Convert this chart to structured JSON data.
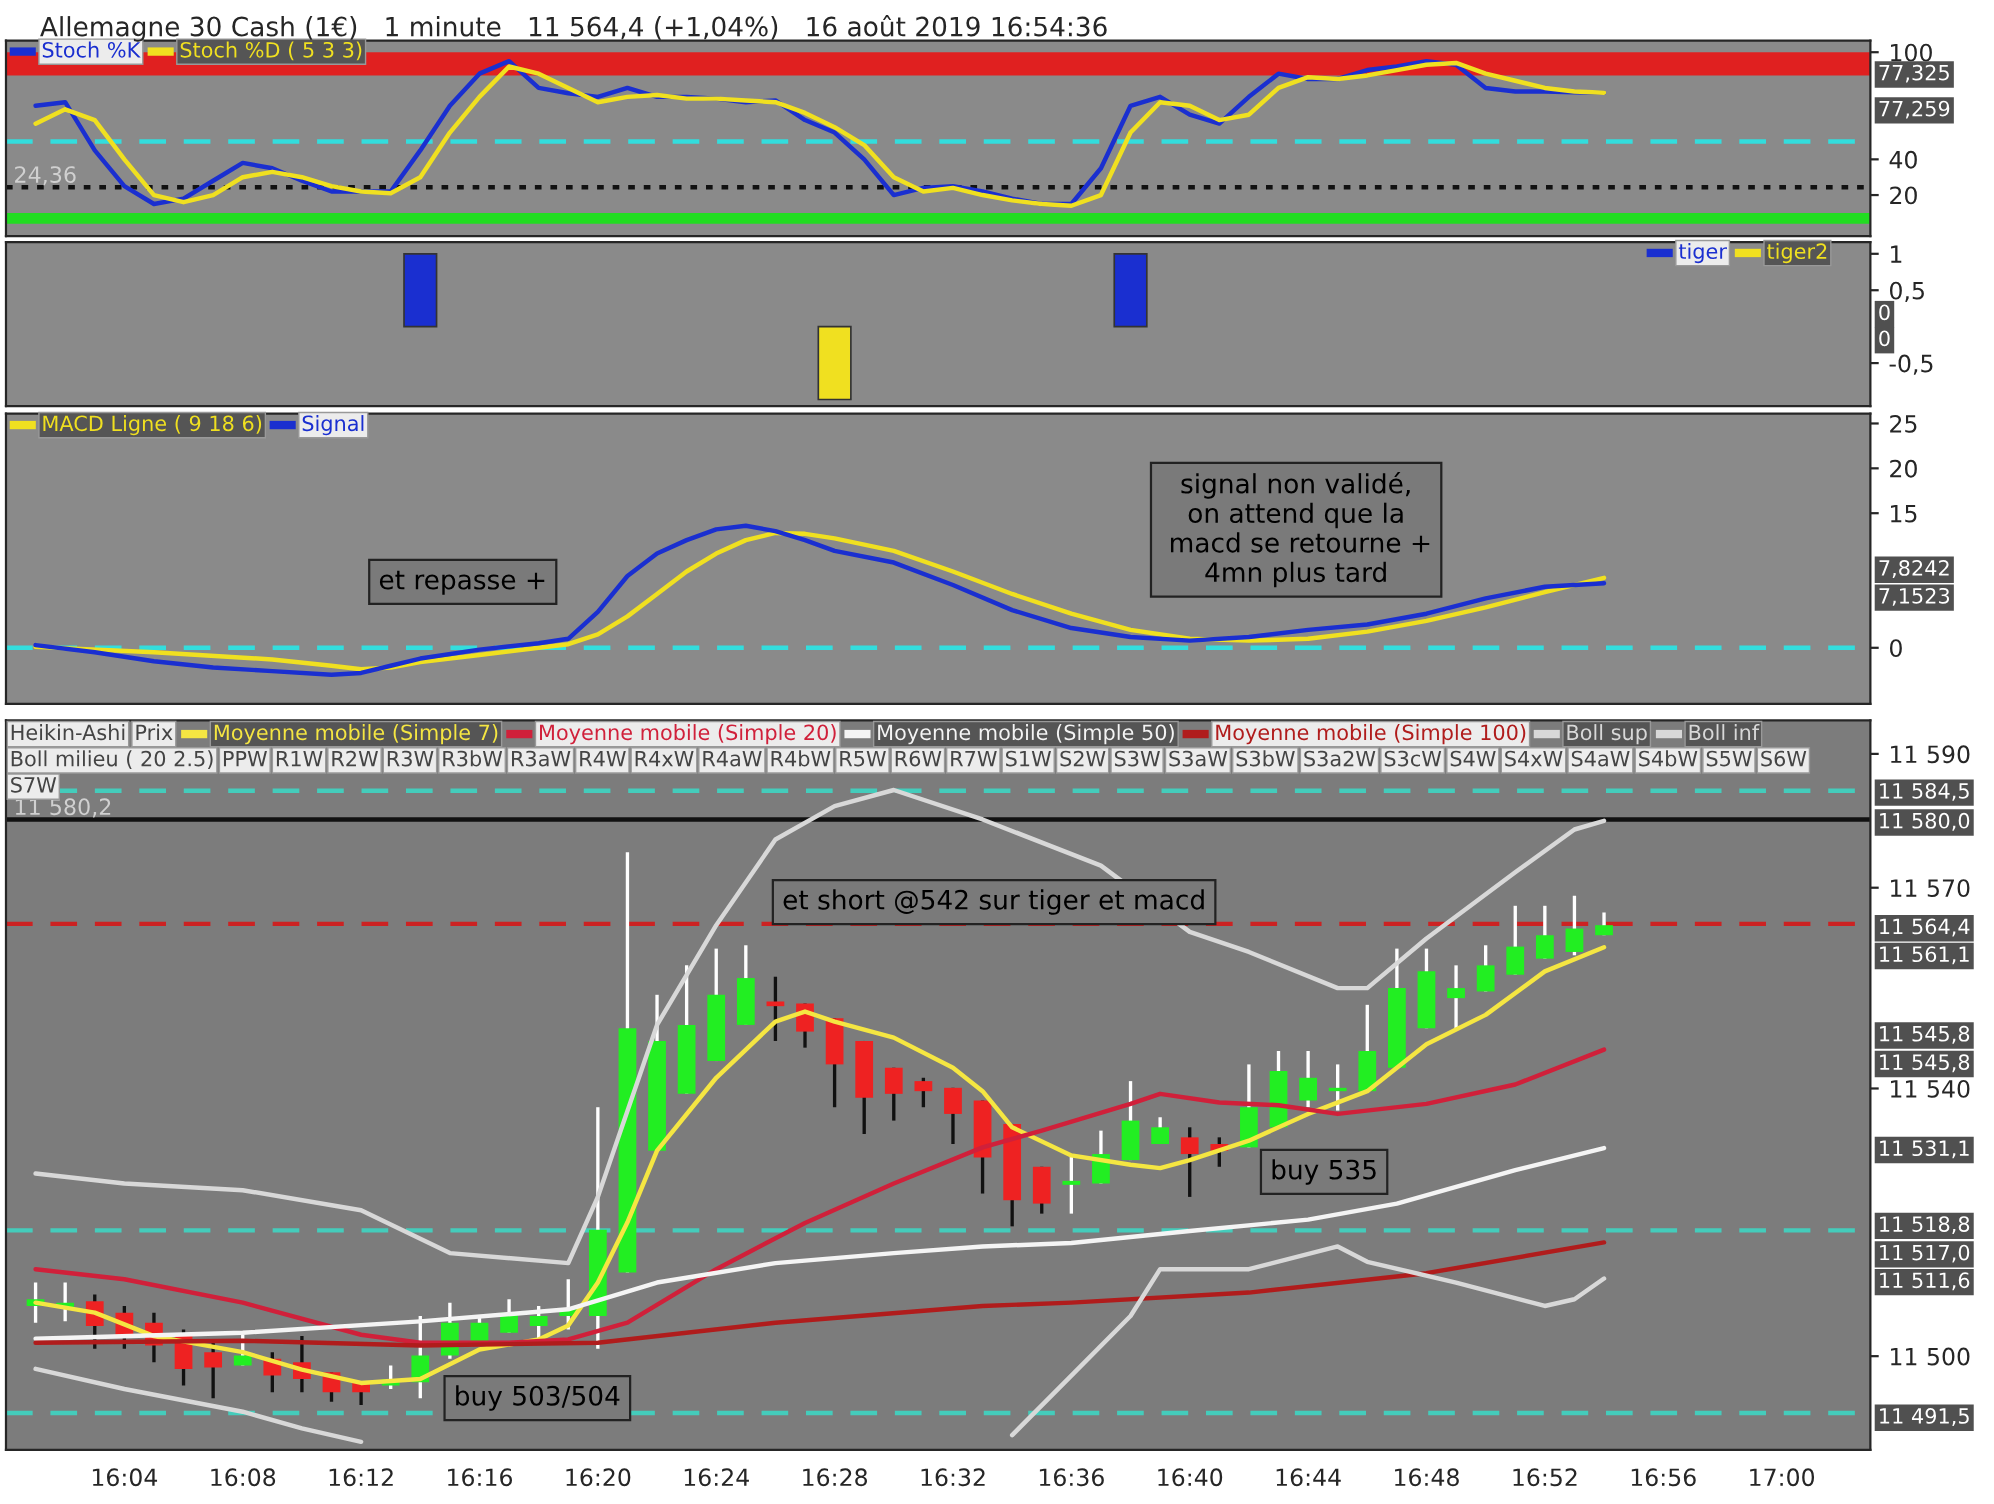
{
  "chart_data": [
    {
      "type": "line",
      "title": "Allemagne 30 Cash (1€)   1 minute   11 564,4 (+1,04%)   16 août 2019 16:54:36",
      "tick_labels": "y",
      "xlim": [
        "2019-08-16T16:00",
        "2019-08-16T17:03"
      ],
      "ylim": [
        -3,
        106.5
      ],
      "yticks": [
        20,
        40,
        100
      ],
      "x": [
        "2019-08-16T16:01",
        "2019-08-16T16:02",
        "2019-08-16T16:03",
        "2019-08-16T16:04",
        "2019-08-16T16:05",
        "2019-08-16T16:06",
        "2019-08-16T16:07",
        "2019-08-16T16:08",
        "2019-08-16T16:09",
        "2019-08-16T16:10",
        "2019-08-16T16:11",
        "2019-08-16T16:12",
        "2019-08-16T16:13",
        "2019-08-16T16:14",
        "2019-08-16T16:15",
        "2019-08-16T16:16",
        "2019-08-16T16:17",
        "2019-08-16T16:18",
        "2019-08-16T16:19",
        "2019-08-16T16:20",
        "2019-08-16T16:21",
        "2019-08-16T16:22",
        "2019-08-16T16:23",
        "2019-08-16T16:24",
        "2019-08-16T16:25",
        "2019-08-16T16:26",
        "2019-08-16T16:27",
        "2019-08-16T16:28",
        "2019-08-16T16:29",
        "2019-08-16T16:30",
        "2019-08-16T16:31",
        "2019-08-16T16:32",
        "2019-08-16T16:33",
        "2019-08-16T16:34",
        "2019-08-16T16:35",
        "2019-08-16T16:36",
        "2019-08-16T16:37",
        "2019-08-16T16:38",
        "2019-08-16T16:39",
        "2019-08-16T16:40",
        "2019-08-16T16:41",
        "2019-08-16T16:42",
        "2019-08-16T16:43",
        "2019-08-16T16:44",
        "2019-08-16T16:45",
        "2019-08-16T16:46",
        "2019-08-16T16:47",
        "2019-08-16T16:48",
        "2019-08-16T16:49",
        "2019-08-16T16:50",
        "2019-08-16T16:51",
        "2019-08-16T16:52",
        "2019-08-16T16:53",
        "2019-08-16T16:54"
      ],
      "series": [
        {
          "name": "Stoch %K",
          "color": "#1a2fd0",
          "values": [
            70,
            72,
            45,
            25,
            15,
            18,
            28,
            38,
            35,
            28,
            22,
            22,
            22,
            45,
            70,
            88,
            95,
            80,
            77,
            75,
            80,
            75,
            75,
            74,
            72,
            73,
            62,
            55,
            40,
            20,
            24,
            25,
            22,
            18,
            15,
            15,
            35,
            70,
            75,
            65,
            60,
            75,
            88,
            85,
            85,
            90,
            92,
            95,
            93,
            80,
            78,
            78,
            77.5,
            77.3
          ]
        },
        {
          "name": "Stoch %D ( 5 3 3)",
          "color": "#f0e020",
          "values": [
            60,
            68,
            62,
            40,
            20,
            16,
            20,
            30,
            33,
            30,
            25,
            22,
            21,
            30,
            55,
            75,
            92,
            88,
            80,
            72,
            75,
            76,
            74,
            74,
            73,
            72,
            66,
            58,
            48,
            30,
            22,
            24,
            20,
            17,
            15,
            14,
            20,
            55,
            72,
            70,
            62,
            65,
            80,
            86,
            85,
            87,
            90,
            93,
            94,
            88,
            84,
            80,
            78,
            77.3
          ]
        }
      ],
      "bands": [
        {
          "axis": "y",
          "from": 87,
          "to": 100,
          "color": "#e02020"
        },
        {
          "axis": "y",
          "from": 4,
          "to": 10,
          "color": "#22dd22"
        }
      ],
      "ref_lines": [
        {
          "axis": "y",
          "value": 50,
          "color": "#33dddd",
          "line_style": "dashed"
        },
        {
          "axis": "y",
          "value": 24.36,
          "label": "24,36",
          "color": "#111111",
          "line_style": "dotted"
        }
      ],
      "legend": "top left",
      "annotations": [
        "77,325",
        "77,259"
      ]
    },
    {
      "type": "bar",
      "tick_labels": "y",
      "xlim": [
        "2019-08-16T16:00",
        "2019-08-16T17:03"
      ],
      "ylim": [
        -1.09,
        1.16
      ],
      "yticks": [
        1,
        {
          "value": 0.5,
          "label": "0,5"
        },
        {
          "value": -0.5,
          "label": "-0,5"
        }
      ],
      "series": [
        {
          "name": "tiger",
          "color": "#1a2fd0",
          "x": [
            "2019-08-16T16:14",
            "2019-08-16T16:38"
          ],
          "values": [
            1,
            1
          ]
        },
        {
          "name": "tiger2",
          "color": "#f0e020",
          "x": [
            "2019-08-16T16:28"
          ],
          "values": [
            -1
          ]
        }
      ],
      "legend": "top right",
      "annotations": [
        "0",
        "0"
      ]
    },
    {
      "type": "line",
      "tick_labels": "y",
      "xlim": [
        "2019-08-16T16:00",
        "2019-08-16T17:03"
      ],
      "ylim": [
        -6.25,
        26.1
      ],
      "yticks": [
        0,
        15,
        20,
        25
      ],
      "series": [
        {
          "name": "MACD Ligne ( 9 18 6)",
          "color": "#f0e020",
          "x": [
            "2019-08-16T16:01",
            "2019-08-16T16:05",
            "2019-08-16T16:09",
            "2019-08-16T16:11",
            "2019-08-16T16:12",
            "2019-08-16T16:13",
            "2019-08-16T16:14",
            "2019-08-16T16:16",
            "2019-08-16T16:18",
            "2019-08-16T16:19",
            "2019-08-16T16:20",
            "2019-08-16T16:21",
            "2019-08-16T16:22",
            "2019-08-16T16:23",
            "2019-08-16T16:24",
            "2019-08-16T16:25",
            "2019-08-16T16:26",
            "2019-08-16T16:27",
            "2019-08-16T16:28",
            "2019-08-16T16:30",
            "2019-08-16T16:32",
            "2019-08-16T16:34",
            "2019-08-16T16:36",
            "2019-08-16T16:38",
            "2019-08-16T16:40",
            "2019-08-16T16:42",
            "2019-08-16T16:44",
            "2019-08-16T16:46",
            "2019-08-16T16:48",
            "2019-08-16T16:50",
            "2019-08-16T16:52",
            "2019-08-16T16:54"
          ],
          "values": [
            0.1,
            -0.5,
            -1.3,
            -2.0,
            -2.4,
            -2.2,
            -1.6,
            -0.8,
            0,
            0.4,
            1.5,
            3.5,
            6,
            8.5,
            10.5,
            12.0,
            12.8,
            12.7,
            12.2,
            10.8,
            8.5,
            6.0,
            3.8,
            2.0,
            1.0,
            0.8,
            1.0,
            1.8,
            3.0,
            4.5,
            6.2,
            7.8
          ]
        },
        {
          "name": "Signal",
          "color": "#1a2fd0",
          "x": [
            "2019-08-16T16:01",
            "2019-08-16T16:03",
            "2019-08-16T16:05",
            "2019-08-16T16:07",
            "2019-08-16T16:09",
            "2019-08-16T16:11",
            "2019-08-16T16:12",
            "2019-08-16T16:13",
            "2019-08-16T16:14",
            "2019-08-16T16:16",
            "2019-08-16T16:18",
            "2019-08-16T16:19",
            "2019-08-16T16:20",
            "2019-08-16T16:21",
            "2019-08-16T16:22",
            "2019-08-16T16:23",
            "2019-08-16T16:24",
            "2019-08-16T16:25",
            "2019-08-16T16:26",
            "2019-08-16T16:27",
            "2019-08-16T16:28",
            "2019-08-16T16:30",
            "2019-08-16T16:32",
            "2019-08-16T16:34",
            "2019-08-16T16:36",
            "2019-08-16T16:38",
            "2019-08-16T16:40",
            "2019-08-16T16:42",
            "2019-08-16T16:44",
            "2019-08-16T16:46",
            "2019-08-16T16:48",
            "2019-08-16T16:50",
            "2019-08-16T16:52",
            "2019-08-16T16:54"
          ],
          "values": [
            0.3,
            -0.5,
            -1.5,
            -2.2,
            -2.6,
            -3.0,
            -2.8,
            -2.0,
            -1.2,
            -0.2,
            0.5,
            1.0,
            4,
            8,
            10.5,
            12.0,
            13.2,
            13.6,
            13.0,
            12.0,
            10.8,
            9.5,
            7.0,
            4.2,
            2.2,
            1.2,
            0.8,
            1.2,
            2.0,
            2.6,
            3.8,
            5.5,
            6.8,
            7.2
          ]
        }
      ],
      "ref_lines": [
        {
          "axis": "y",
          "value": 0,
          "color": "#33dddd",
          "line_style": "dashed"
        }
      ],
      "legend": "top left",
      "annotations": [
        "et repasse +",
        "signal non validé,\non attend que la\n macd se retourne +\n4mn plus tard",
        "7,8242",
        "7,1523"
      ]
    },
    {
      "type": "candlestick",
      "xlim": [
        "2019-08-16T16:00",
        "2019-08-16T17:03"
      ],
      "ylim": [
        11486,
        11595
      ],
      "yticks": [
        {
          "value": 11590,
          "label": "11 590"
        },
        {
          "value": 11570,
          "label": "11 570"
        },
        {
          "value": 11540,
          "label": "11 540"
        },
        {
          "value": 11500,
          "label": "11 500"
        }
      ],
      "xticks": [
        {
          "value": "2019-08-16T16:04",
          "label": "16:04"
        },
        {
          "value": "2019-08-16T16:08",
          "label": "16:08"
        },
        {
          "value": "2019-08-16T16:12",
          "label": "16:12"
        },
        {
          "value": "2019-08-16T16:16",
          "label": "16:16"
        },
        {
          "value": "2019-08-16T16:20",
          "label": "16:20"
        },
        {
          "value": "2019-08-16T16:24",
          "label": "16:24"
        },
        {
          "value": "2019-08-16T16:28",
          "label": "16:28"
        },
        {
          "value": "2019-08-16T16:32",
          "label": "16:32"
        },
        {
          "value": "2019-08-16T16:36",
          "label": "16:36"
        },
        {
          "value": "2019-08-16T16:40",
          "label": "16:40"
        },
        {
          "value": "2019-08-16T16:44",
          "label": "16:44"
        },
        {
          "value": "2019-08-16T16:48",
          "label": "16:48"
        },
        {
          "value": "2019-08-16T16:52",
          "label": "16:52"
        },
        {
          "value": "2019-08-16T16:56",
          "label": "16:56"
        },
        {
          "value": "2019-08-16T17:00",
          "label": "17:00"
        }
      ],
      "x": [
        "2019-08-16T16:01",
        "2019-08-16T16:02",
        "2019-08-16T16:03",
        "2019-08-16T16:04",
        "2019-08-16T16:05",
        "2019-08-16T16:06",
        "2019-08-16T16:07",
        "2019-08-16T16:08",
        "2019-08-16T16:09",
        "2019-08-16T16:10",
        "2019-08-16T16:11",
        "2019-08-16T16:12",
        "2019-08-16T16:13",
        "2019-08-16T16:14",
        "2019-08-16T16:15",
        "2019-08-16T16:16",
        "2019-08-16T16:17",
        "2019-08-16T16:18",
        "2019-08-16T16:19",
        "2019-08-16T16:20",
        "2019-08-16T16:21",
        "2019-08-16T16:22",
        "2019-08-16T16:23",
        "2019-08-16T16:24",
        "2019-08-16T16:25",
        "2019-08-16T16:26",
        "2019-08-16T16:27",
        "2019-08-16T16:28",
        "2019-08-16T16:29",
        "2019-08-16T16:30",
        "2019-08-16T16:31",
        "2019-08-16T16:32",
        "2019-08-16T16:33",
        "2019-08-16T16:34",
        "2019-08-16T16:35",
        "2019-08-16T16:36",
        "2019-08-16T16:37",
        "2019-08-16T16:38",
        "2019-08-16T16:39",
        "2019-08-16T16:40",
        "2019-08-16T16:41",
        "2019-08-16T16:42",
        "2019-08-16T16:43",
        "2019-08-16T16:44",
        "2019-08-16T16:45",
        "2019-08-16T16:46",
        "2019-08-16T16:47",
        "2019-08-16T16:48",
        "2019-08-16T16:49",
        "2019-08-16T16:50",
        "2019-08-16T16:51",
        "2019-08-16T16:52",
        "2019-08-16T16:53",
        "2019-08-16T16:54"
      ],
      "ohlc": [
        [
          11507.5,
          11511,
          11505,
          11508.5
        ],
        [
          11507.2,
          11511,
          11505.2,
          11508
        ],
        [
          11508.2,
          11509.2,
          11501.1,
          11504.5
        ],
        [
          11506.5,
          11507.5,
          11501.1,
          11503
        ],
        [
          11505,
          11506.5,
          11499.1,
          11501.6
        ],
        [
          11503,
          11504,
          11495.6,
          11498.1
        ],
        [
          11500.6,
          11502,
          11493.7,
          11498.3
        ],
        [
          11498.6,
          11503.2,
          11498.6,
          11500.1
        ],
        [
          11499.6,
          11500.6,
          11494.6,
          11497.1
        ],
        [
          11499.1,
          11503,
          11494.6,
          11496.6
        ],
        [
          11497.6,
          11497.6,
          11493.2,
          11494.6
        ],
        [
          11496.3,
          11496.3,
          11492.7,
          11494.6
        ],
        [
          11495.6,
          11498.6,
          11495.1,
          11496.6
        ],
        [
          11496.1,
          11506,
          11493.7,
          11500.1
        ],
        [
          11500.1,
          11508,
          11499.6,
          11505
        ],
        [
          11502,
          11506,
          11502,
          11505
        ],
        [
          11503.5,
          11508.5,
          11503.5,
          11506.5
        ],
        [
          11504.5,
          11507.5,
          11502,
          11506
        ],
        [
          11506,
          11511.5,
          11504,
          11507
        ],
        [
          11506,
          11537.2,
          11501.1,
          11518.9
        ],
        [
          11512.5,
          11575.3,
          11512.5,
          11549
        ],
        [
          11530.7,
          11554,
          11530.7,
          11547.1
        ],
        [
          11539.2,
          11558.4,
          11539.2,
          11549.5
        ],
        [
          11544.1,
          11560.9,
          11544.1,
          11554
        ],
        [
          11549.5,
          11561.4,
          11549.5,
          11556.5
        ],
        [
          11553,
          11556.7,
          11547.1,
          11552.3
        ],
        [
          11552.7,
          11552.7,
          11546.1,
          11548.5
        ],
        [
          11550.5,
          11550.5,
          11537.2,
          11543.6
        ],
        [
          11547.1,
          11547.1,
          11533.2,
          11538.6
        ],
        [
          11543.1,
          11543.1,
          11535.2,
          11539.2
        ],
        [
          11541.1,
          11541.6,
          11537.2,
          11539.6
        ],
        [
          11540.1,
          11540.1,
          11531.7,
          11536.2
        ],
        [
          11538.2,
          11538.2,
          11524.3,
          11529.7
        ],
        [
          11534.7,
          11534.7,
          11519.4,
          11523.3
        ],
        [
          11528.3,
          11528.3,
          11521.3,
          11522.8
        ],
        [
          11525.6,
          11530.2,
          11521.3,
          11526.2
        ],
        [
          11525.8,
          11533.7,
          11525.8,
          11530.2
        ],
        [
          11529.3,
          11541.1,
          11529.3,
          11535.2
        ],
        [
          11531.7,
          11535.7,
          11531.7,
          11534.2
        ],
        [
          11532.7,
          11534.2,
          11523.8,
          11530.2
        ],
        [
          11531.7,
          11532.7,
          11528.3,
          11530.7
        ],
        [
          11531.2,
          11543.6,
          11531.2,
          11537.2
        ],
        [
          11534.2,
          11545.6,
          11534.2,
          11542.6
        ],
        [
          11538.2,
          11545.6,
          11537.2,
          11541.6
        ],
        [
          11539.6,
          11543.6,
          11536.7,
          11540.1
        ],
        [
          11539.6,
          11552.5,
          11539.6,
          11545.6
        ],
        [
          11543.1,
          11560.9,
          11543.1,
          11555
        ],
        [
          11549,
          11560.9,
          11549,
          11557.5
        ],
        [
          11553.5,
          11558.4,
          11549,
          11555
        ],
        [
          11554.5,
          11561.4,
          11554.5,
          11558.4
        ],
        [
          11557,
          11567.3,
          11557,
          11561.2
        ],
        [
          11559.4,
          11567.3,
          11559.4,
          11562.9
        ],
        [
          11560.4,
          11568.8,
          11559.9,
          11563.9
        ],
        [
          11562.9,
          11566.3,
          11562.9,
          11564.4
        ]
      ],
      "colors": [
        "#22ee22",
        "#22ee22",
        "#ee2222",
        "#ee2222",
        "#ee2222",
        "#ee2222",
        "#ee2222",
        "#22ee22",
        "#ee2222",
        "#ee2222",
        "#ee2222",
        "#ee2222",
        "#22ee22",
        "#22ee22",
        "#22ee22",
        "#22ee22",
        "#22ee22",
        "#22ee22",
        "#22ee22",
        "#22ee22",
        "#22ee22",
        "#22ee22",
        "#22ee22",
        "#22ee22",
        "#22ee22",
        "#ee2222",
        "#ee2222",
        "#ee2222",
        "#ee2222",
        "#ee2222",
        "#ee2222",
        "#ee2222",
        "#ee2222",
        "#ee2222",
        "#ee2222",
        "#22ee22",
        "#22ee22",
        "#22ee22",
        "#22ee22",
        "#ee2222",
        "#ee2222",
        "#22ee22",
        "#22ee22",
        "#22ee22",
        "#22ee22",
        "#22ee22",
        "#22ee22",
        "#22ee22",
        "#22ee22",
        "#22ee22",
        "#22ee22",
        "#22ee22",
        "#22ee22",
        "#22ee22"
      ],
      "series": [
        {
          "name": "Moyenne mobile (Simple 7)",
          "type": "line",
          "color": "#f5e642",
          "x": [
            "2019-08-16T16:01",
            "2019-08-16T16:03",
            "2019-08-16T16:05",
            "2019-08-16T16:08",
            "2019-08-16T16:10",
            "2019-08-16T16:12",
            "2019-08-16T16:14",
            "2019-08-16T16:16",
            "2019-08-16T16:18",
            "2019-08-16T16:19",
            "2019-08-16T16:20",
            "2019-08-16T16:21",
            "2019-08-16T16:22",
            "2019-08-16T16:24",
            "2019-08-16T16:26",
            "2019-08-16T16:27",
            "2019-08-16T16:28",
            "2019-08-16T16:30",
            "2019-08-16T16:32",
            "2019-08-16T16:33",
            "2019-08-16T16:34",
            "2019-08-16T16:36",
            "2019-08-16T16:38",
            "2019-08-16T16:39",
            "2019-08-16T16:40",
            "2019-08-16T16:42",
            "2019-08-16T16:44",
            "2019-08-16T16:46",
            "2019-08-16T16:48",
            "2019-08-16T16:50",
            "2019-08-16T16:52",
            "2019-08-16T16:54"
          ],
          "values": [
            11508,
            11506.5,
            11503,
            11500.6,
            11498,
            11496,
            11496.6,
            11501,
            11502.5,
            11504.6,
            11511,
            11520,
            11530.7,
            11541.6,
            11550,
            11551.5,
            11550,
            11547.6,
            11543.1,
            11539.6,
            11534.2,
            11530,
            11528.6,
            11528.1,
            11529.3,
            11532.2,
            11536.2,
            11539.6,
            11546.6,
            11551,
            11557.5,
            11561.1
          ]
        },
        {
          "name": "Moyenne mobile (Simple 20)",
          "type": "line",
          "color": "#d0203a",
          "x": [
            "2019-08-16T16:01",
            "2019-08-16T16:04",
            "2019-08-16T16:08",
            "2019-08-16T16:12",
            "2019-08-16T16:14",
            "2019-08-16T16:17",
            "2019-08-16T16:19",
            "2019-08-16T16:21",
            "2019-08-16T16:24",
            "2019-08-16T16:27",
            "2019-08-16T16:30",
            "2019-08-16T16:33",
            "2019-08-16T16:35",
            "2019-08-16T16:38",
            "2019-08-16T16:39",
            "2019-08-16T16:41",
            "2019-08-16T16:43",
            "2019-08-16T16:45",
            "2019-08-16T16:48",
            "2019-08-16T16:51",
            "2019-08-16T16:54"
          ],
          "values": [
            11513,
            11511.5,
            11508,
            11503.2,
            11502,
            11502,
            11502.5,
            11505,
            11513,
            11519.9,
            11525.8,
            11531.2,
            11533.7,
            11537.7,
            11539.2,
            11537.9,
            11537.5,
            11536.2,
            11537.7,
            11540.6,
            11545.8
          ]
        },
        {
          "name": "Moyenne mobile (Simple 50)",
          "type": "line",
          "color": "#f4f4f4",
          "x": [
            "2019-08-16T16:01",
            "2019-08-16T16:08",
            "2019-08-16T16:14",
            "2019-08-16T16:19",
            "2019-08-16T16:22",
            "2019-08-16T16:26",
            "2019-08-16T16:30",
            "2019-08-16T16:33",
            "2019-08-16T16:36",
            "2019-08-16T16:40",
            "2019-08-16T16:44",
            "2019-08-16T16:47",
            "2019-08-16T16:51",
            "2019-08-16T16:54"
          ],
          "values": [
            11502.6,
            11503.5,
            11505.2,
            11507,
            11511,
            11513.9,
            11515.4,
            11516.4,
            11516.9,
            11518.7,
            11520.4,
            11522.8,
            11527.8,
            11531.1
          ]
        },
        {
          "name": "Moyenne mobile (Simple 100)",
          "type": "line",
          "color": "#b01c1c",
          "x": [
            "2019-08-16T16:01",
            "2019-08-16T16:08",
            "2019-08-16T16:14",
            "2019-08-16T16:20",
            "2019-08-16T16:26",
            "2019-08-16T16:33",
            "2019-08-16T16:36",
            "2019-08-16T16:42",
            "2019-08-16T16:48",
            "2019-08-16T16:54"
          ],
          "values": [
            11502,
            11502.3,
            11501.6,
            11502,
            11505,
            11507.5,
            11508,
            11509.5,
            11512.4,
            11517.0
          ]
        },
        {
          "name": "Boll sup",
          "type": "line",
          "color": "#d8d8d8",
          "x": [
            "2019-08-16T16:01",
            "2019-08-16T16:04",
            "2019-08-16T16:08",
            "2019-08-16T16:12",
            "2019-08-16T16:15",
            "2019-08-16T16:19",
            "2019-08-16T16:20",
            "2019-08-16T16:22",
            "2019-08-16T16:24",
            "2019-08-16T16:26",
            "2019-08-16T16:28",
            "2019-08-16T16:30",
            "2019-08-16T16:33",
            "2019-08-16T16:37",
            "2019-08-16T16:40",
            "2019-08-16T16:42",
            "2019-08-16T16:45",
            "2019-08-16T16:46",
            "2019-08-16T16:48",
            "2019-08-16T16:51",
            "2019-08-16T16:53",
            "2019-08-16T16:54"
          ],
          "values": [
            11527.3,
            11525.8,
            11524.8,
            11521.8,
            11515.4,
            11513.9,
            11523.8,
            11549.5,
            11564.4,
            11577.2,
            11582.2,
            11584.6,
            11580.2,
            11573.3,
            11563.4,
            11560.4,
            11555,
            11555,
            11562.4,
            11572.3,
            11578.7,
            11580.0
          ]
        },
        {
          "name": "Boll inf",
          "type": "line",
          "color": "#d8d8d8",
          "x": [
            "2019-08-16T16:01",
            "2019-08-16T16:04",
            "2019-08-16T16:08",
            "2019-08-16T16:10",
            "2019-08-16T16:12",
            "2019-08-16T16:14",
            "2019-08-16T16:33",
            "2019-08-16T16:34",
            "2019-08-16T16:36",
            "2019-08-16T16:38",
            "2019-08-16T16:39",
            "2019-08-16T16:42",
            "2019-08-16T16:45",
            "2019-08-16T16:46",
            "2019-08-16T16:49",
            "2019-08-16T16:52",
            "2019-08-16T16:53",
            "2019-08-16T16:54"
          ],
          "values": [
            11498.1,
            11495.1,
            11491.7,
            11489.2,
            11487.2,
            null,
            null,
            11488.2,
            11497.1,
            11506,
            11513,
            11513,
            11516.4,
            11514.1,
            11511,
            11507.5,
            11508.5,
            11511.6
          ]
        }
      ],
      "ref_lines": [
        {
          "axis": "y",
          "value": 11584.5,
          "color": "#44ccbb",
          "line_style": "dashed"
        },
        {
          "axis": "y",
          "value": 11580.2,
          "label": "11 580,2",
          "color": "#111111",
          "line_style": "solid"
        },
        {
          "axis": "y",
          "value": 11564.6,
          "color": "#cc2222",
          "line_style": "dashed"
        },
        {
          "axis": "y",
          "value": 11518.8,
          "color": "#44ccbb",
          "line_style": "dashed"
        },
        {
          "axis": "y",
          "value": 11491.5,
          "color": "#44ccbb",
          "line_style": "dashed"
        }
      ],
      "annotations": [
        "Heikin-Ashi",
        "Prix",
        "Boll milieu ( 20 2.5)",
        "PPW",
        "R1W",
        "R2W",
        "R3W",
        "R3bW",
        "R3aW",
        "R4W",
        "R4xW",
        "R4aW",
        "R4bW",
        "R5W",
        "R6W",
        "R7W",
        "S1W",
        "S2W",
        "S3W",
        "S3aW",
        "S3bW",
        "S3a2W",
        "S3cW",
        "S4W",
        "S4xW",
        "S4aW",
        "S4bW",
        "S5W",
        "S6W",
        "S7W",
        "et short @542 sur tiger et macd",
        "buy 503/504",
        "buy 535",
        "11 584,5",
        "11 580,0",
        "11 564,4",
        "11 561,1",
        "11 545,8",
        "11 545,8",
        "11 531,1",
        "11 518,8",
        "11 517,0",
        "11 511,6",
        "11 491,5"
      ],
      "legend": "top left"
    }
  ]
}
